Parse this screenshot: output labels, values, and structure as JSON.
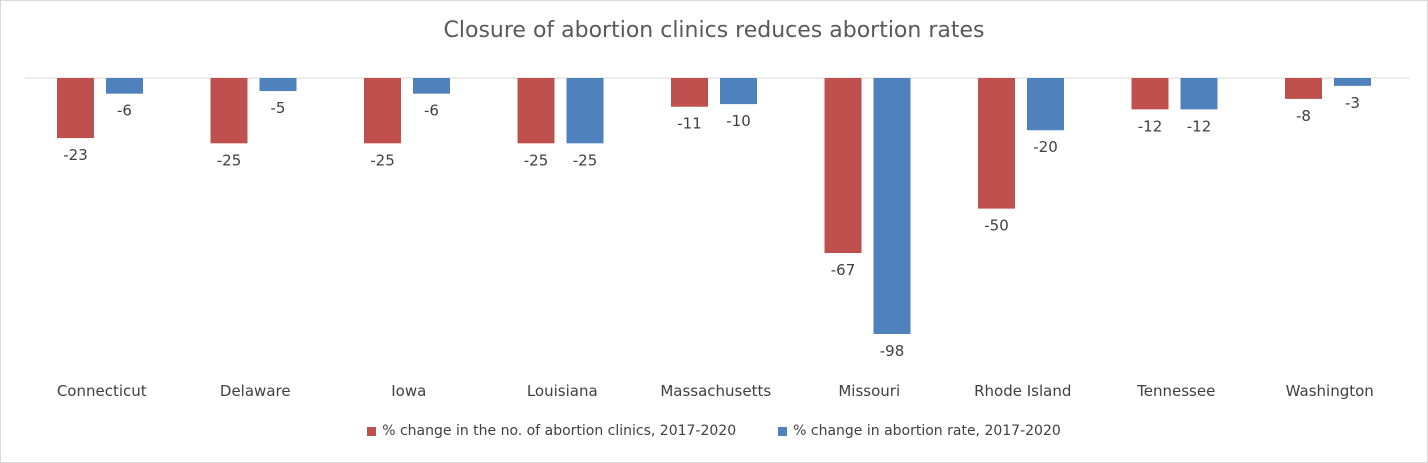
{
  "chart_data": {
    "type": "bar",
    "title": "Closure of abortion clinics reduces abortion rates",
    "categories": [
      "Connecticut",
      "Delaware",
      "Iowa",
      "Louisiana",
      "Massachusetts",
      "Missouri",
      "Rhode Island",
      "Tennessee",
      "Washington"
    ],
    "series": [
      {
        "name": "% change in the no. of abortion clinics, 2017-2020",
        "color": "#c0504d",
        "values": [
          -23,
          -25,
          -25,
          -25,
          -11,
          -67,
          -50,
          -12,
          -8
        ]
      },
      {
        "name": "% change in abortion rate, 2017-2020",
        "color": "#4f81bd",
        "values": [
          -6,
          -5,
          -6,
          -25,
          -10,
          -98,
          -20,
          -12,
          -3
        ]
      }
    ],
    "xlabel": "",
    "ylabel": "",
    "ylim": [
      -98,
      0
    ],
    "grid": false,
    "legend_position": "bottom"
  }
}
